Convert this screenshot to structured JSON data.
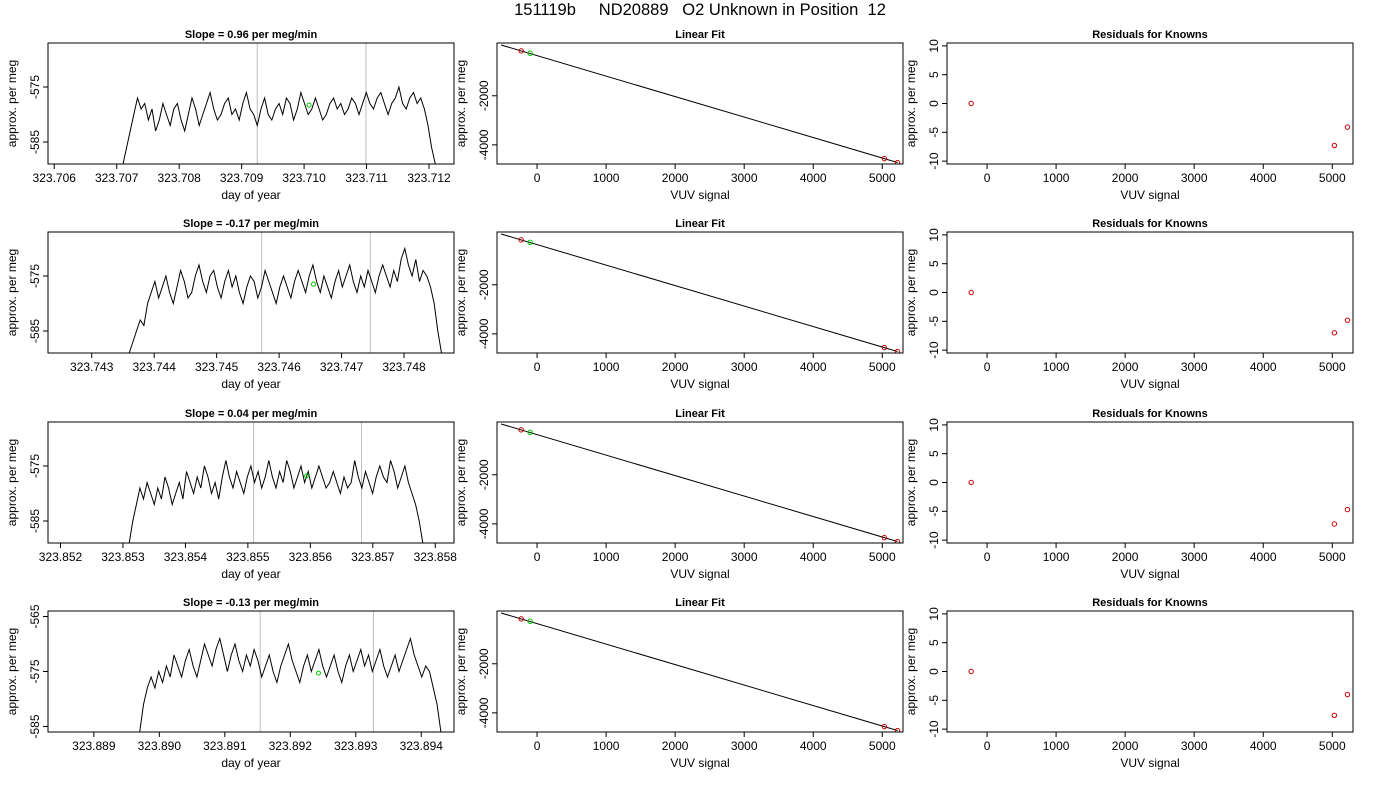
{
  "page": {
    "title": "151119b     ND20889   O2 Unknown in Position  12"
  },
  "chart_data": [
    {
      "type": "line",
      "kind": "timeseries",
      "title": "Slope =  0.96  per meg/min",
      "xlabel": "day of year",
      "ylabel": "approx. per meg",
      "xlim": [
        323.7059,
        323.7124
      ],
      "ylim": [
        -589,
        -567
      ],
      "xticks": [
        "323.706",
        "323.707",
        "323.708",
        "323.709",
        "323.710",
        "323.711",
        "323.712"
      ],
      "xtick_values": [
        323.706,
        323.707,
        323.708,
        323.709,
        323.71,
        323.711,
        323.712
      ],
      "yticks": [
        "-575",
        "-585"
      ],
      "ytick_values": [
        -575,
        -585
      ],
      "x_start": 323.7071,
      "x_end": 323.7121,
      "values": [
        -589,
        -586,
        -583,
        -580,
        -577,
        -579,
        -578,
        -581,
        -579,
        -583,
        -581,
        -578,
        -580,
        -582,
        -579,
        -578,
        -581,
        -583,
        -580,
        -577,
        -579,
        -582,
        -580,
        -578,
        -576,
        -579,
        -581,
        -580,
        -578,
        -577,
        -580,
        -579,
        -581,
        -578,
        -576,
        -579,
        -580,
        -582,
        -579,
        -577,
        -580,
        -581,
        -579,
        -578,
        -580,
        -577,
        -578,
        -581,
        -579,
        -576,
        -578,
        -580,
        -579,
        -577,
        -579,
        -581,
        -580,
        -578,
        -577,
        -579,
        -578,
        -580,
        -579,
        -577,
        -578,
        -580,
        -578,
        -576,
        -578,
        -579,
        -577,
        -576,
        -578,
        -580,
        -578,
        -577,
        -575,
        -578,
        -579,
        -577,
        -576,
        -578,
        -577,
        -579,
        -582,
        -586,
        -589
      ],
      "vlines": [
        323.70925,
        323.71099
      ],
      "marker": {
        "x": 323.71008,
        "y": -578.3,
        "color": "#00cc00"
      }
    },
    {
      "type": "scatter",
      "kind": "fit",
      "title": "Linear Fit",
      "xlabel": "VUV signal",
      "ylabel": "approx. per meg",
      "xlim": [
        -580,
        5300
      ],
      "ylim": [
        -4780,
        150
      ],
      "xticks": [
        "0",
        "1000",
        "2000",
        "3000",
        "4000",
        "5000"
      ],
      "xtick_values": [
        0,
        1000,
        2000,
        3000,
        4000,
        5000
      ],
      "yticks": [
        "-2000",
        "-4000"
      ],
      "ytick_values": [
        -2000,
        -4000
      ],
      "line": [
        [
          -520,
          70
        ],
        [
          5220,
          -4720
        ]
      ],
      "points": [
        [
          -230,
          -170
        ],
        [
          5030,
          -4560
        ],
        [
          5220,
          -4720
        ]
      ],
      "marker": {
        "x": -100,
        "y": -270,
        "color": "#00cc00"
      }
    },
    {
      "type": "scatter",
      "kind": "residuals",
      "title": "Residuals for Knowns",
      "xlabel": "VUV signal",
      "ylabel": "approx. per meg",
      "xlim": [
        -580,
        5300
      ],
      "ylim": [
        -10.5,
        10.5
      ],
      "xticks": [
        "0",
        "1000",
        "2000",
        "3000",
        "4000",
        "5000"
      ],
      "xtick_values": [
        0,
        1000,
        2000,
        3000,
        4000,
        5000
      ],
      "yticks": [
        "-10",
        "-5",
        "0",
        "5",
        "10"
      ],
      "ytick_values": [
        -10,
        -5,
        0,
        5,
        10
      ],
      "points": [
        [
          -230,
          0
        ],
        [
          5030,
          -7.3
        ],
        [
          5220,
          -4.1
        ]
      ]
    },
    {
      "type": "line",
      "kind": "timeseries",
      "title": "Slope =  -0.17  per meg/min",
      "xlabel": "day of year",
      "ylabel": "approx. per meg",
      "xlim": [
        323.7423,
        323.7488
      ],
      "ylim": [
        -589,
        -567
      ],
      "xticks": [
        "323.743",
        "323.744",
        "323.745",
        "323.746",
        "323.747",
        "323.748"
      ],
      "xtick_values": [
        323.743,
        323.744,
        323.745,
        323.746,
        323.747,
        323.748
      ],
      "yticks": [
        "-575",
        "-585"
      ],
      "ytick_values": [
        -575,
        -585
      ],
      "x_start": 323.7436,
      "x_end": 323.7486,
      "values": [
        -589,
        -587,
        -585,
        -583,
        -584,
        -580,
        -578,
        -576,
        -579,
        -577,
        -575,
        -578,
        -580,
        -577,
        -574,
        -576,
        -579,
        -578,
        -575,
        -573,
        -576,
        -578,
        -575,
        -574,
        -577,
        -579,
        -576,
        -574,
        -577,
        -575,
        -578,
        -580,
        -577,
        -575,
        -576,
        -579,
        -577,
        -574,
        -576,
        -578,
        -580,
        -577,
        -575,
        -577,
        -579,
        -576,
        -574,
        -576,
        -578,
        -575,
        -573,
        -576,
        -578,
        -575,
        -577,
        -579,
        -576,
        -574,
        -577,
        -575,
        -573,
        -576,
        -578,
        -575,
        -577,
        -574,
        -576,
        -578,
        -575,
        -573,
        -575,
        -577,
        -574,
        -576,
        -572,
        -570,
        -573,
        -575,
        -572,
        -576,
        -574,
        -575,
        -577,
        -580,
        -585,
        -589
      ],
      "vlines": [
        323.74572,
        323.74746
      ],
      "marker": {
        "x": 323.74655,
        "y": -576.5,
        "color": "#00cc00"
      }
    },
    {
      "type": "scatter",
      "kind": "fit",
      "title": "Linear Fit",
      "xlabel": "VUV signal",
      "ylabel": "approx. per meg",
      "xlim": [
        -580,
        5300
      ],
      "ylim": [
        -4780,
        150
      ],
      "xticks": [
        "0",
        "1000",
        "2000",
        "3000",
        "4000",
        "5000"
      ],
      "xtick_values": [
        0,
        1000,
        2000,
        3000,
        4000,
        5000
      ],
      "yticks": [
        "-2000",
        "-4000"
      ],
      "ytick_values": [
        -2000,
        -4000
      ],
      "line": [
        [
          -520,
          70
        ],
        [
          5220,
          -4720
        ]
      ],
      "points": [
        [
          -230,
          -170
        ],
        [
          5030,
          -4560
        ],
        [
          5220,
          -4720
        ]
      ],
      "marker": {
        "x": -100,
        "y": -270,
        "color": "#00cc00"
      }
    },
    {
      "type": "scatter",
      "kind": "residuals",
      "title": "Residuals for Knowns",
      "xlabel": "VUV signal",
      "ylabel": "approx. per meg",
      "xlim": [
        -580,
        5300
      ],
      "ylim": [
        -10.5,
        10.5
      ],
      "xticks": [
        "0",
        "1000",
        "2000",
        "3000",
        "4000",
        "5000"
      ],
      "xtick_values": [
        0,
        1000,
        2000,
        3000,
        4000,
        5000
      ],
      "yticks": [
        "-10",
        "-5",
        "0",
        "5",
        "10"
      ],
      "ytick_values": [
        -10,
        -5,
        0,
        5,
        10
      ],
      "points": [
        [
          -230,
          0
        ],
        [
          5030,
          -7.0
        ],
        [
          5220,
          -4.8
        ]
      ]
    },
    {
      "type": "line",
      "kind": "timeseries",
      "title": "Slope =  0.04  per meg/min",
      "xlabel": "day of year",
      "ylabel": "approx. per meg",
      "xlim": [
        323.8518,
        323.8583
      ],
      "ylim": [
        -589,
        -567
      ],
      "xticks": [
        "323.852",
        "323.853",
        "323.854",
        "323.855",
        "323.856",
        "323.857",
        "323.858"
      ],
      "xtick_values": [
        323.852,
        323.853,
        323.854,
        323.855,
        323.856,
        323.857,
        323.858
      ],
      "yticks": [
        "-575",
        "-585"
      ],
      "ytick_values": [
        -575,
        -585
      ],
      "x_start": 323.8531,
      "x_end": 323.8578,
      "values": [
        -589,
        -585,
        -582,
        -579,
        -581,
        -578,
        -580,
        -582,
        -579,
        -581,
        -577,
        -579,
        -582,
        -580,
        -578,
        -581,
        -576,
        -578,
        -580,
        -577,
        -579,
        -575,
        -577,
        -580,
        -578,
        -581,
        -577,
        -574,
        -577,
        -579,
        -576,
        -578,
        -580,
        -577,
        -575,
        -578,
        -576,
        -579,
        -577,
        -574,
        -577,
        -579,
        -576,
        -578,
        -574,
        -576,
        -579,
        -577,
        -575,
        -578,
        -576,
        -579,
        -577,
        -575,
        -577,
        -579,
        -578,
        -576,
        -578,
        -580,
        -577,
        -579,
        -578,
        -574,
        -577,
        -579,
        -576,
        -578,
        -580,
        -577,
        -575,
        -577,
        -578,
        -574,
        -576,
        -579,
        -577,
        -575,
        -578,
        -580,
        -582,
        -585,
        -589
      ],
      "vlines": [
        323.85509,
        323.85682
      ],
      "marker": {
        "x": 323.85594,
        "y": -576.8,
        "color": "#00cc00"
      }
    },
    {
      "type": "scatter",
      "kind": "fit",
      "title": "Linear Fit",
      "xlabel": "VUV signal",
      "ylabel": "approx. per meg",
      "xlim": [
        -580,
        5300
      ],
      "ylim": [
        -4780,
        150
      ],
      "xticks": [
        "0",
        "1000",
        "2000",
        "3000",
        "4000",
        "5000"
      ],
      "xtick_values": [
        0,
        1000,
        2000,
        3000,
        4000,
        5000
      ],
      "yticks": [
        "-2000",
        "-4000"
      ],
      "ytick_values": [
        -2000,
        -4000
      ],
      "line": [
        [
          -520,
          70
        ],
        [
          5220,
          -4720
        ]
      ],
      "points": [
        [
          -230,
          -170
        ],
        [
          5030,
          -4560
        ],
        [
          5220,
          -4720
        ]
      ],
      "marker": {
        "x": -100,
        "y": -270,
        "color": "#00cc00"
      }
    },
    {
      "type": "scatter",
      "kind": "residuals",
      "title": "Residuals for Knowns",
      "xlabel": "VUV signal",
      "ylabel": "approx. per meg",
      "xlim": [
        -580,
        5300
      ],
      "ylim": [
        -10.5,
        10.5
      ],
      "xticks": [
        "0",
        "1000",
        "2000",
        "3000",
        "4000",
        "5000"
      ],
      "xtick_values": [
        0,
        1000,
        2000,
        3000,
        4000,
        5000
      ],
      "yticks": [
        "-10",
        "-5",
        "0",
        "5",
        "10"
      ],
      "ytick_values": [
        -10,
        -5,
        0,
        5,
        10
      ],
      "points": [
        [
          -230,
          0
        ],
        [
          5030,
          -7.2
        ],
        [
          5220,
          -4.7
        ]
      ]
    },
    {
      "type": "line",
      "kind": "timeseries",
      "title": "Slope =  -0.13  per meg/min",
      "xlabel": "day of year",
      "ylabel": "approx. per meg",
      "xlim": [
        323.8883,
        323.8945
      ],
      "ylim": [
        -586,
        -564
      ],
      "xticks": [
        "323.889",
        "323.890",
        "323.891",
        "323.892",
        "323.893",
        "323.894"
      ],
      "xtick_values": [
        323.889,
        323.89,
        323.891,
        323.892,
        323.893,
        323.894
      ],
      "yticks": [
        "-565",
        "-575",
        "-585"
      ],
      "ytick_values": [
        -565,
        -575,
        -585
      ],
      "x_start": 323.8897,
      "x_end": 323.8943,
      "values": [
        -586,
        -581,
        -578,
        -576,
        -578,
        -575,
        -577,
        -574,
        -576,
        -572,
        -574,
        -576,
        -573,
        -571,
        -574,
        -576,
        -573,
        -570,
        -572,
        -574,
        -571,
        -569,
        -572,
        -575,
        -572,
        -570,
        -573,
        -575,
        -572,
        -574,
        -571,
        -573,
        -576,
        -574,
        -572,
        -575,
        -577,
        -574,
        -572,
        -570,
        -573,
        -575,
        -577,
        -574,
        -572,
        -575,
        -573,
        -571,
        -574,
        -576,
        -574,
        -572,
        -575,
        -577,
        -574,
        -572,
        -575,
        -573,
        -571,
        -574,
        -572,
        -575,
        -573,
        -571,
        -574,
        -576,
        -574,
        -572,
        -575,
        -573,
        -571,
        -569,
        -572,
        -574,
        -576,
        -574,
        -575,
        -578,
        -581,
        -586
      ],
      "vlines": [
        323.89154,
        323.89327
      ],
      "marker": {
        "x": 323.89243,
        "y": -575.3,
        "color": "#00cc00"
      }
    },
    {
      "type": "scatter",
      "kind": "fit",
      "title": "Linear Fit",
      "xlabel": "VUV signal",
      "ylabel": "approx. per meg",
      "xlim": [
        -580,
        5300
      ],
      "ylim": [
        -4780,
        150
      ],
      "xticks": [
        "0",
        "1000",
        "2000",
        "3000",
        "4000",
        "5000"
      ],
      "xtick_values": [
        0,
        1000,
        2000,
        3000,
        4000,
        5000
      ],
      "yticks": [
        "-2000",
        "-4000"
      ],
      "ytick_values": [
        -2000,
        -4000
      ],
      "line": [
        [
          -520,
          70
        ],
        [
          5220,
          -4720
        ]
      ],
      "points": [
        [
          -230,
          -170
        ],
        [
          5030,
          -4560
        ],
        [
          5220,
          -4720
        ]
      ],
      "marker": {
        "x": -100,
        "y": -270,
        "color": "#00cc00"
      }
    },
    {
      "type": "scatter",
      "kind": "residuals",
      "title": "Residuals for Knowns",
      "xlabel": "VUV signal",
      "ylabel": "approx. per meg",
      "xlim": [
        -580,
        5300
      ],
      "ylim": [
        -10.5,
        10.5
      ],
      "xticks": [
        "0",
        "1000",
        "2000",
        "3000",
        "4000",
        "5000"
      ],
      "xtick_values": [
        0,
        1000,
        2000,
        3000,
        4000,
        5000
      ],
      "yticks": [
        "-10",
        "-5",
        "0",
        "5",
        "10"
      ],
      "ytick_values": [
        -10,
        -5,
        0,
        5,
        10
      ],
      "points": [
        [
          -230,
          0
        ],
        [
          5030,
          -7.6
        ],
        [
          5220,
          -4.0
        ]
      ]
    }
  ],
  "colors": {
    "line": "#000000",
    "point": "#cc0000",
    "unknown": "#00cc00",
    "vline": "#bebebe"
  }
}
